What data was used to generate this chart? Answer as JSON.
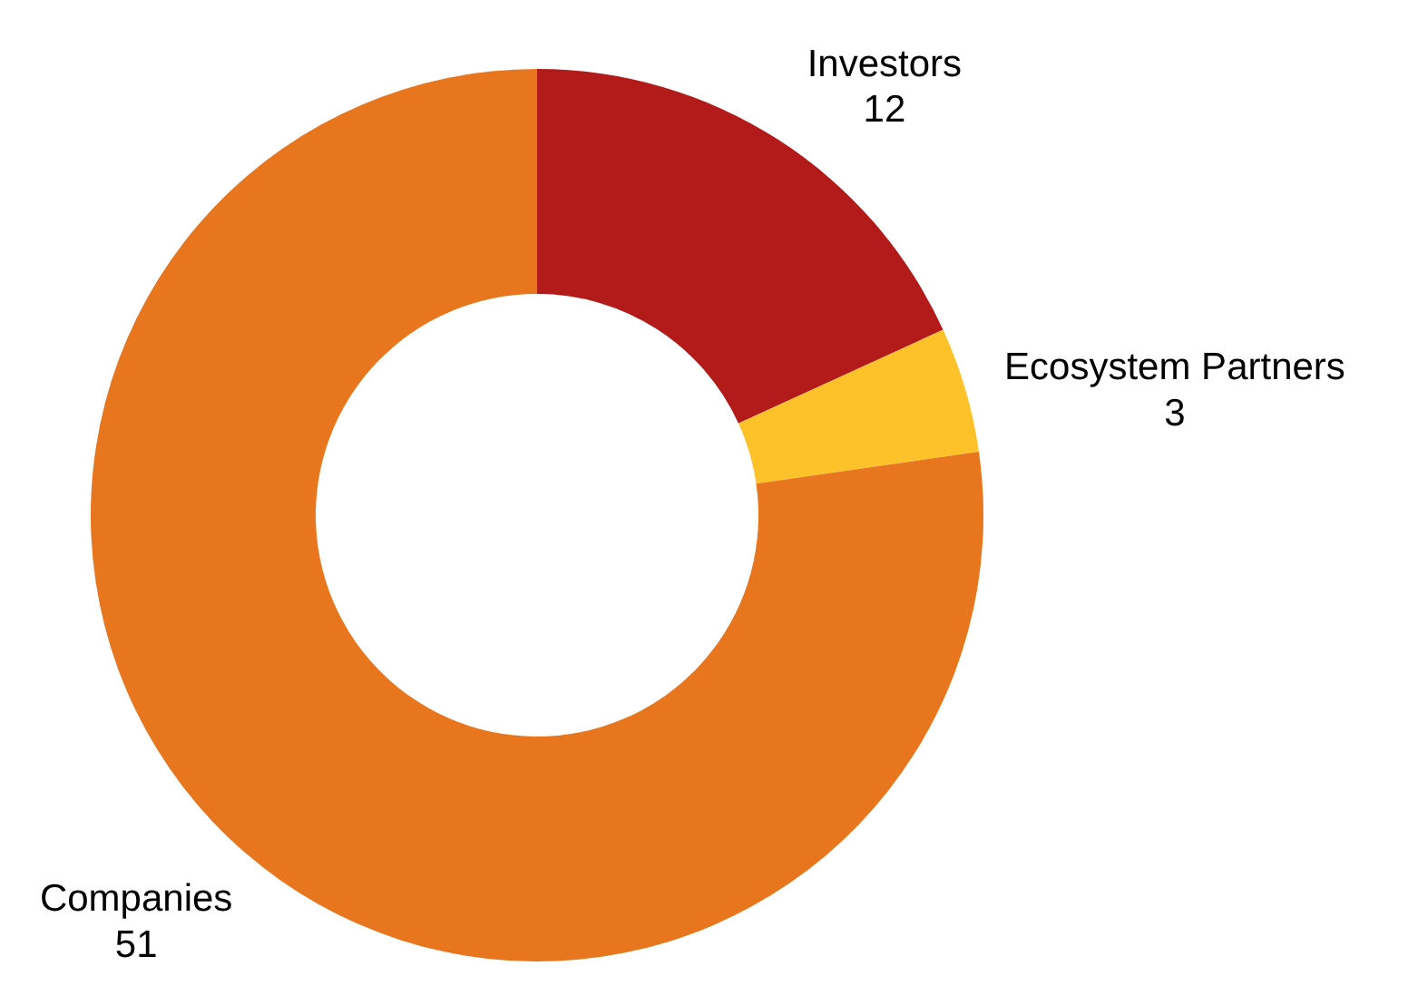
{
  "chart_data": {
    "type": "donut",
    "categories": [
      "Investors",
      "Ecosystem Partners",
      "Companies"
    ],
    "values": [
      12,
      3,
      51
    ],
    "colors": [
      "#b31b1b",
      "#fdc12a",
      "#e8761e"
    ],
    "data_labels": true
  }
}
